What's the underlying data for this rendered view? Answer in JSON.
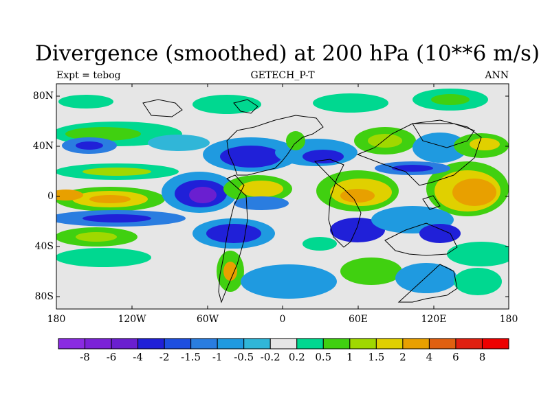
{
  "title": "Divergence (smoothed) at 200 hPa (10**6 m/s)",
  "subtitle_left": "Expt = tebog",
  "subtitle_center": "GETECH_P-T",
  "subtitle_right": "ANN",
  "lat_labels": [
    "80N",
    "40N",
    "0",
    "40S",
    "80S"
  ],
  "lon_labels": [
    "180",
    "120W",
    "60W",
    "0",
    "60E",
    "120E",
    "180"
  ],
  "colorbar": {
    "colors": [
      "#8a2be2",
      "#7b22d8",
      "#6a1fd0",
      "#2020d8",
      "#1e4fe0",
      "#2a7de0",
      "#1f9ae0",
      "#30b6d8",
      "#e6e6e6",
      "#00d890",
      "#40d010",
      "#a0d800",
      "#e0d000",
      "#e8a000",
      "#e06010",
      "#e02010",
      "#ee0000"
    ],
    "labels": [
      "-8",
      "-6",
      "-4",
      "-2",
      "-1.5",
      "-1",
      "-0.5",
      "-0.2",
      "0.2",
      "0.5",
      "1",
      "1.5",
      "2",
      "4",
      "6",
      "8"
    ]
  },
  "colors": {
    "background": "#e6e6e6",
    "strong_neg": "#6a1fd0",
    "neg": "#2020d8",
    "mid_neg": "#2a7de0",
    "weak_neg": "#30b6d8",
    "weak_pos": "#00d890",
    "pos": "#40d010",
    "strong_pos": "#e8a000"
  }
}
